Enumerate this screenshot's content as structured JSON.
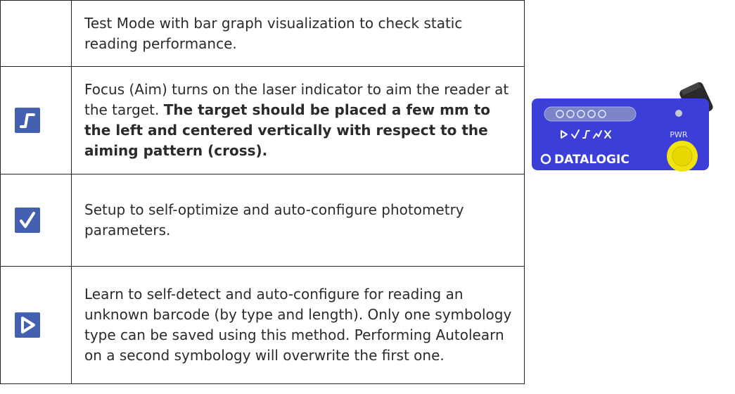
{
  "table": {
    "rows": [
      {
        "text": "Test Mode with bar graph visualization to check static reading performance."
      },
      {
        "text": "Focus (Aim) turns on the laser indicator to aim the reader at the target. ",
        "bold": "The target should be placed a few mm to the left and centered vertically with respect to the aiming pattern (cross)."
      },
      {
        "text": "Setup to self-optimize and auto-configure photometry parameters."
      },
      {
        "text": "Learn to self-detect and auto-configure for reading an unknown barcode (by type and length). Only one symbology type can be saved using this method. Performing Autolearn on a second symbology will overwrite the first one."
      }
    ]
  },
  "device": {
    "power_label": "PWR",
    "brand": "DATALOGIC"
  }
}
